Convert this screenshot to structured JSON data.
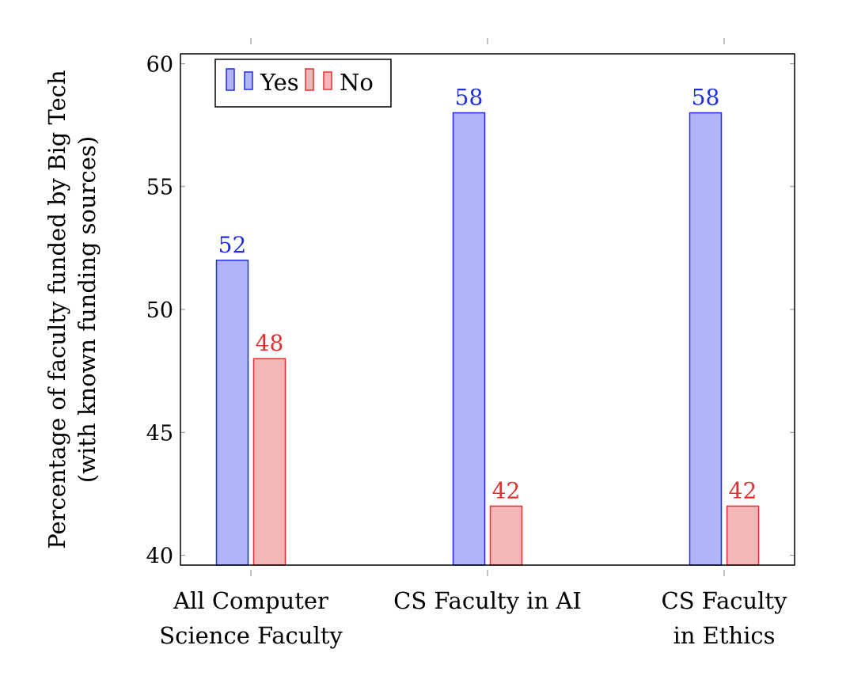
{
  "chart_data": {
    "type": "bar",
    "categories": [
      [
        "All Computer",
        "Science Faculty"
      ],
      [
        "CS Faculty in AI"
      ],
      [
        "CS Faculty",
        "in Ethics"
      ]
    ],
    "series": [
      {
        "name": "Yes",
        "values": [
          52,
          58,
          58
        ],
        "fill": "#b1b4f6",
        "stroke": "#1f2ee0",
        "label_color": "#1f2ee0"
      },
      {
        "name": "No",
        "values": [
          48,
          42,
          42
        ],
        "fill": "#f4b6b6",
        "stroke": "#e0302f",
        "label_color": "#e0302f"
      }
    ],
    "title": "",
    "xlabel": "",
    "ylabel": [
      "Percentage of faculty funded by Big Tech",
      "(with known funding sources)"
    ],
    "ylim": [
      39.6,
      60.4
    ],
    "yticks": [
      40,
      45,
      50,
      55,
      60
    ],
    "legend": "top-left",
    "grid": false
  }
}
